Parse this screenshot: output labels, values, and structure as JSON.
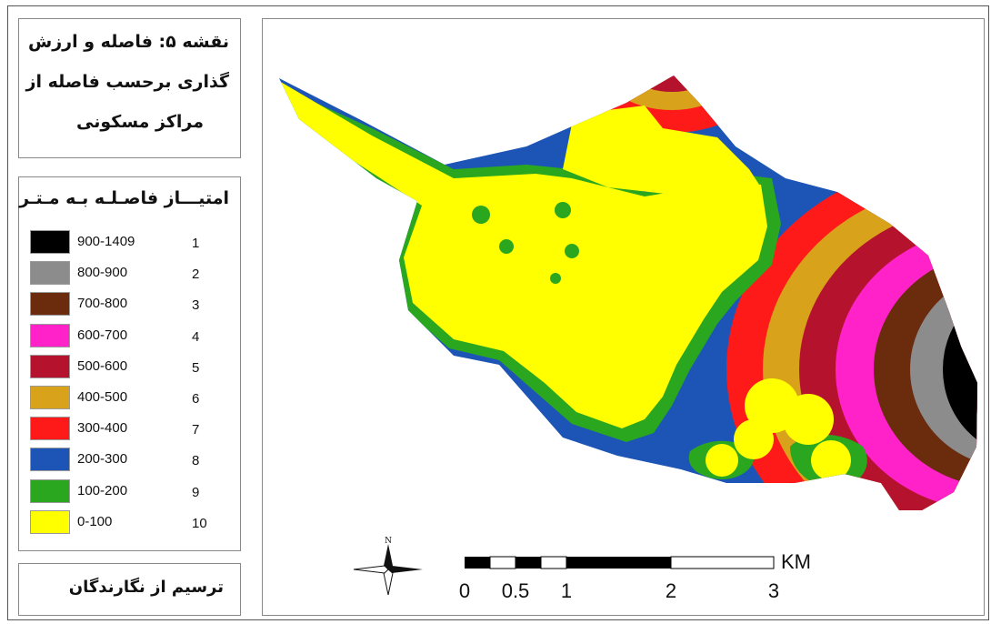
{
  "map": {
    "title_lines": [
      "نقشه ۵: فاصله و ارزش",
      "گذاری برحسب فاصله از",
      "مراکز مسکونی"
    ],
    "legend_title": "امتیـــاز فاصـلـه بـه مـتـر",
    "legend": [
      {
        "range": "900-1409",
        "score": "1",
        "color": "#000000"
      },
      {
        "range": "800-900",
        "score": "2",
        "color": "#8c8c8c"
      },
      {
        "range": "700-800",
        "score": "3",
        "color": "#6b2b0d"
      },
      {
        "range": "600-700",
        "score": "4",
        "color": "#ff22c8"
      },
      {
        "range": "500-600",
        "score": "5",
        "color": "#b5122e"
      },
      {
        "range": "400-500",
        "score": "6",
        "color": "#d9a21b"
      },
      {
        "range": "300-400",
        "score": "7",
        "color": "#ff1a1a"
      },
      {
        "range": "200-300",
        "score": "8",
        "color": "#1c55b5"
      },
      {
        "range": "100-200",
        "score": "9",
        "color": "#2aa61f"
      },
      {
        "range": "0-100",
        "score": "10",
        "color": "#ffff00"
      }
    ],
    "credit": "ترسیم از نگارندگان",
    "north_label": "N",
    "scale_bar": {
      "unit": "KM",
      "ticks": [
        "0",
        "0.5",
        "1",
        "2",
        "3"
      ]
    }
  }
}
